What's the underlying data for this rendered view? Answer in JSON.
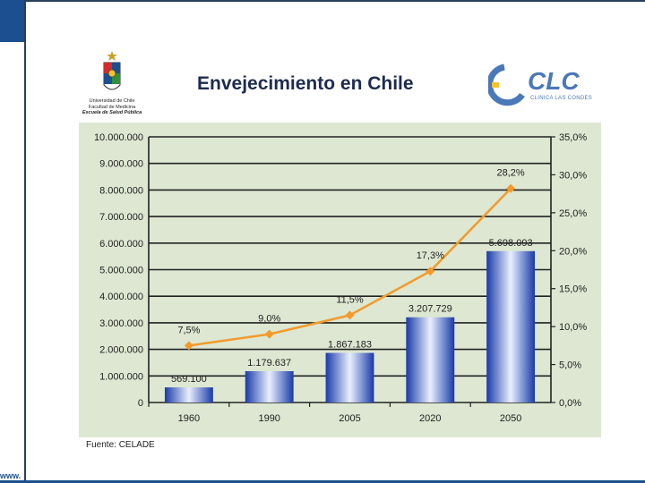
{
  "header": {
    "title": "Envejecimiento en Chile",
    "uchile_line1": "Universidad de Chile",
    "uchile_line2": "Facultad de Medicina",
    "uchile_line3": "Escuela de Salud Pública",
    "clc_text": "CLC",
    "clc_subtext": "CLINICA LAS CONDES"
  },
  "footer": {
    "www": "www.",
    "source": "Fuente:  CELADE"
  },
  "colors": {
    "bar_dark": "#1a3aa8",
    "bar_light": "#e8f0ff",
    "line": "#f39a2b",
    "panel": "#dde7d2",
    "title": "#1d2b4f"
  },
  "chart_data": {
    "type": "bar",
    "title": "",
    "categories": [
      "1960",
      "1990",
      "2005",
      "2020",
      "2050"
    ],
    "series": [
      {
        "type": "bar",
        "axis": "left",
        "values": [
          569100,
          1179637,
          1867183,
          3207729,
          5698093
        ],
        "labels": [
          "569.100",
          "1.179.637",
          "1.867.183",
          "3.207.729",
          "5.698.093"
        ]
      },
      {
        "type": "line",
        "axis": "right",
        "values": [
          7.5,
          9.0,
          11.5,
          17.3,
          28.2
        ],
        "labels": [
          "7,5%",
          "9,0%",
          "11,5%",
          "17,3%",
          "28,2%"
        ]
      }
    ],
    "y_left": {
      "min": 0,
      "max": 10000000,
      "ticks": [
        "0",
        "1.000.000",
        "2.000.000",
        "3.000.000",
        "4.000.000",
        "5.000.000",
        "6.000.000",
        "7.000.000",
        "8.000.000",
        "9.000.000",
        "10.000.000"
      ]
    },
    "y_right": {
      "min": 0,
      "max": 35,
      "ticks": [
        "0,0%",
        "5,0%",
        "10,0%",
        "15,0%",
        "20,0%",
        "25,0%",
        "30,0%",
        "35,0%"
      ]
    },
    "grid": true,
    "legend": "none"
  }
}
